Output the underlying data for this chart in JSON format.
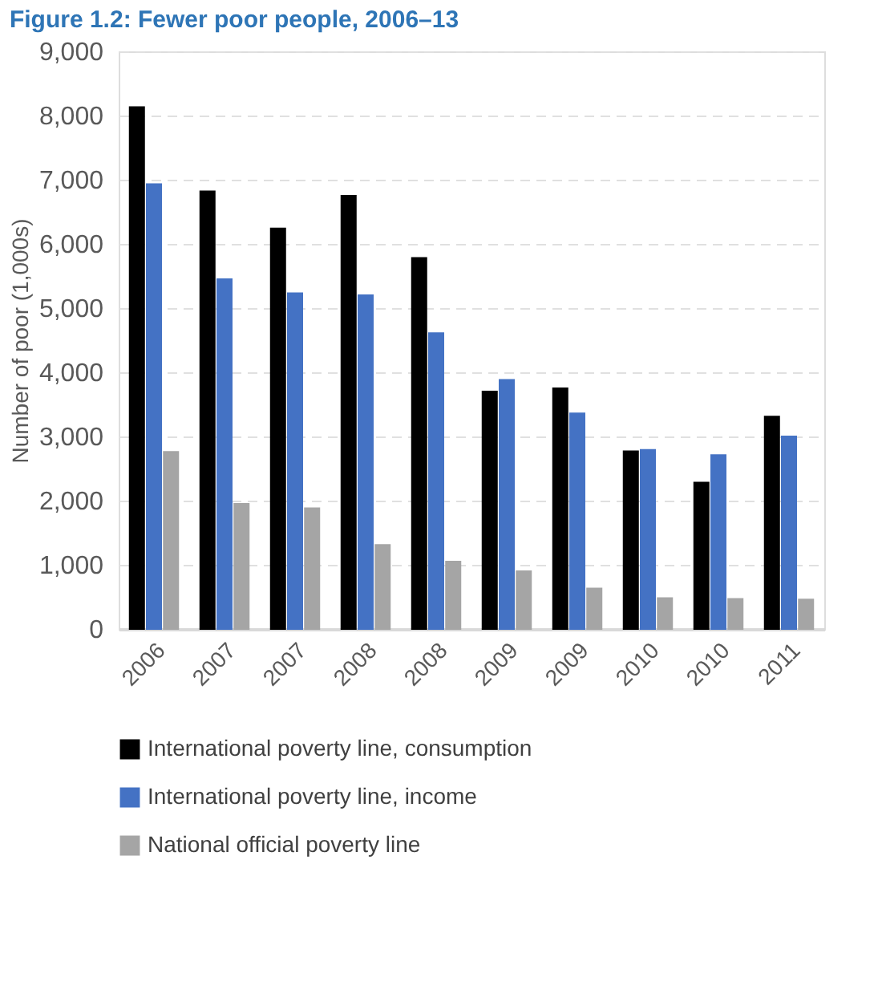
{
  "chart_data": {
    "type": "bar",
    "title": "Figure 1.2: Fewer poor people, 2006–13",
    "ylabel": "Number of poor (1,000s)",
    "categories": [
      "2006",
      "2007",
      "2007",
      "2008",
      "2008",
      "2009",
      "2009",
      "2010",
      "2010",
      "2011"
    ],
    "series": [
      {
        "name": "International poverty line, consumption",
        "color": "#000000",
        "values": [
          8130,
          6820,
          6240,
          6750,
          5780,
          3700,
          3750,
          2770,
          2280,
          3310
        ]
      },
      {
        "name": "International poverty line, income",
        "color": "#4472c4",
        "values": [
          6930,
          5450,
          5230,
          5200,
          4610,
          3880,
          3360,
          2790,
          2710,
          3000
        ]
      },
      {
        "name": "National official poverty line",
        "color": "#a5a5a5",
        "values": [
          2760,
          1950,
          1880,
          1310,
          1050,
          900,
          630,
          480,
          470,
          460
        ]
      }
    ],
    "ylim": [
      0,
      9000
    ],
    "yticks": [
      0,
      {
        "value": 1000,
        "label": "1,000"
      },
      {
        "value": 2000,
        "label": "2,000"
      },
      {
        "value": 3000,
        "label": "3,000"
      },
      {
        "value": 4000,
        "label": "4,000"
      },
      {
        "value": 5000,
        "label": "5,000"
      },
      {
        "value": 6000,
        "label": "6,000"
      },
      {
        "value": 7000,
        "label": "7,000"
      },
      {
        "value": 8000,
        "label": "8,000"
      },
      {
        "value": 9000,
        "label": "9,000"
      }
    ],
    "grid": "y",
    "legend": "bottom"
  }
}
